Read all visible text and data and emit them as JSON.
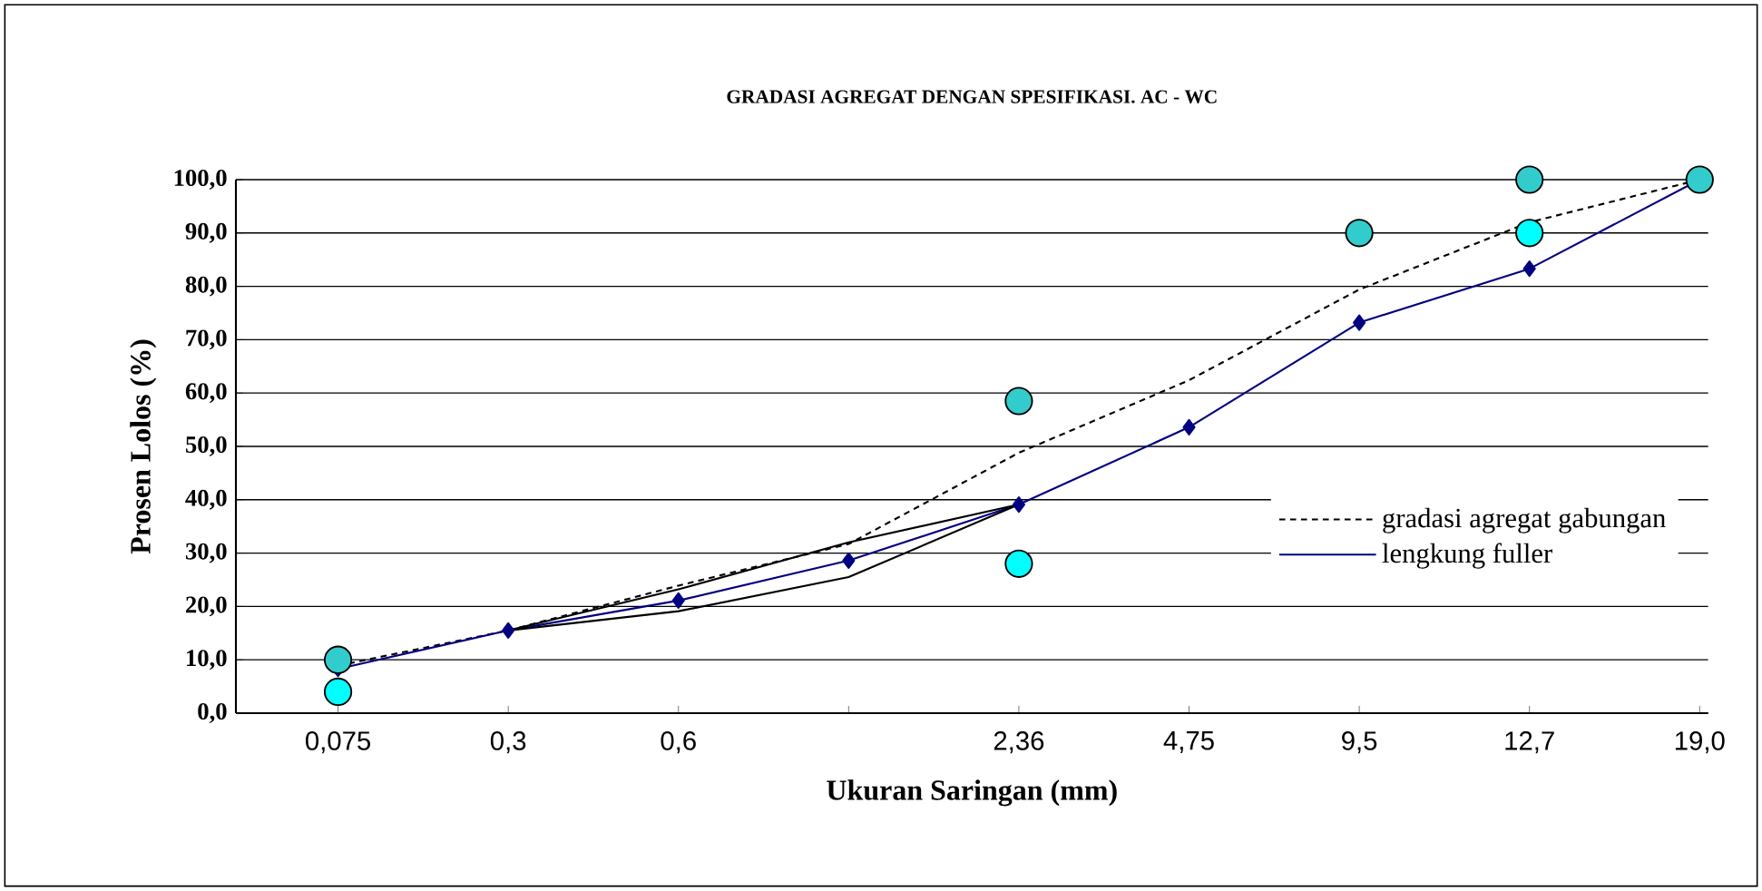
{
  "chart_data": {
    "type": "line",
    "title": "GRADASI AGREGAT DENGAN SPESIFIKASI.  AC - WC",
    "xlabel": "Ukuran Saringan (mm)",
    "ylabel": "Prosen Lolos (%)",
    "categories": [
      "0,075",
      "0,3",
      "0,6",
      null,
      "2,36",
      "4,75",
      "9,5",
      "12,7",
      "19,0"
    ],
    "ylim": [
      0,
      100
    ],
    "yticks": [
      {
        "value": 0,
        "label": "0,0"
      },
      {
        "value": 10,
        "label": "10,0"
      },
      {
        "value": 20,
        "label": "20,0"
      },
      {
        "value": 30,
        "label": "30,0"
      },
      {
        "value": 40,
        "label": "40,0"
      },
      {
        "value": 50,
        "label": "50,0"
      },
      {
        "value": 60,
        "label": "60,0"
      },
      {
        "value": 70,
        "label": "70,0"
      },
      {
        "value": 80,
        "label": "80,0"
      },
      {
        "value": 90,
        "label": "90,0"
      },
      {
        "value": 100,
        "label": "100,0"
      }
    ],
    "grid": "y",
    "legend": "right",
    "series": [
      {
        "name": "gradasi agregat gabungan",
        "color": "#000000",
        "line_style": "dashed",
        "marker": "none",
        "values": [
          8.9,
          15.5,
          23.9,
          31.7,
          48.8,
          62.4,
          79.4,
          92,
          100
        ]
      },
      {
        "name": "lengkung fuller",
        "color": "#000080",
        "line_style": "solid",
        "marker": "diamond",
        "values": [
          8.3,
          15.5,
          21.1,
          28.6,
          39.1,
          53.6,
          73.2,
          83.3,
          100
        ]
      },
      {
        "color": "#000000",
        "line_style": "solid",
        "marker": "none",
        "values": [
          null,
          15.5,
          23.2,
          32,
          39.1,
          null,
          null,
          null,
          null
        ]
      },
      {
        "color": "#000000",
        "line_style": "solid",
        "marker": "none",
        "values": [
          null,
          15.5,
          19.1,
          25.5,
          39.1,
          null,
          null,
          null,
          null
        ]
      },
      {
        "type": "scatter",
        "color": "#33cccc",
        "marker": "circle",
        "values": [
          10,
          null,
          null,
          null,
          58.5,
          null,
          90,
          100,
          100
        ]
      },
      {
        "type": "scatter",
        "color": "#00ffff",
        "marker": "circle",
        "values": [
          4,
          null,
          null,
          null,
          28,
          null,
          null,
          90,
          null
        ]
      }
    ]
  }
}
